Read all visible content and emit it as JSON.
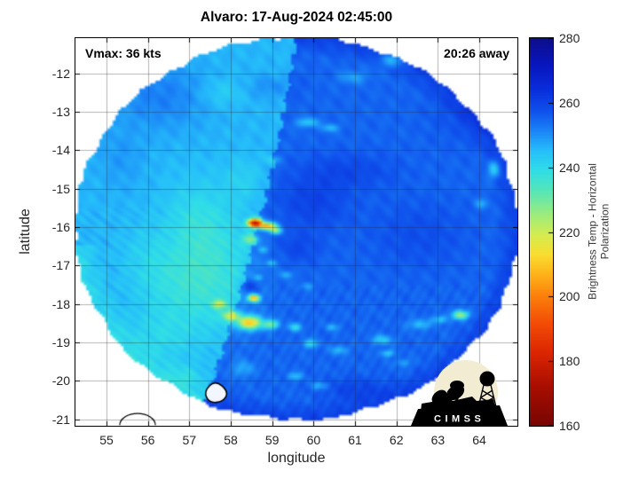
{
  "logo": {
    "text": "CIMSS",
    "bg_color": "#f2ecd2"
  },
  "chart_data": {
    "type": "heatmap",
    "title": "Alvaro: 17-Aug-2024 02:45:00",
    "annotations": {
      "vmax": "Vmax: 36 kts",
      "time_away": "20:26 away"
    },
    "x": {
      "label": "longitude",
      "ticks": [
        55,
        56,
        57,
        58,
        59,
        60,
        61,
        62,
        63,
        64
      ],
      "range": [
        54.25,
        64.92
      ]
    },
    "y": {
      "label": "latitude",
      "ticks": [
        -12,
        -13,
        -14,
        -15,
        -16,
        -17,
        -18,
        -19,
        -20,
        -21
      ],
      "range": [
        -21.17,
        -11.08
      ]
    },
    "colorbar": {
      "label": "Brightness Temp - Horizontal Polarization",
      "ticks": [
        160,
        180,
        200,
        220,
        240,
        260,
        280
      ],
      "range": [
        160,
        280
      ],
      "colormap_stops": [
        [
          160,
          [
            120,
            6,
            4
          ]
        ],
        [
          172,
          [
            168,
            14,
            0
          ]
        ],
        [
          182,
          [
            218,
            36,
            2
          ]
        ],
        [
          192,
          [
            244,
            78,
            6
          ]
        ],
        [
          200,
          [
            252,
            128,
            12
          ]
        ],
        [
          207,
          [
            254,
            180,
            26
          ]
        ],
        [
          213,
          [
            250,
            222,
            48
          ]
        ],
        [
          219,
          [
            214,
            236,
            80
          ]
        ],
        [
          226,
          [
            150,
            236,
            130
          ]
        ],
        [
          233,
          [
            84,
            230,
            188
          ]
        ],
        [
          239,
          [
            48,
            222,
            232
          ]
        ],
        [
          245,
          [
            38,
            192,
            250
          ]
        ],
        [
          251,
          [
            28,
            136,
            248
          ]
        ],
        [
          257,
          [
            16,
            84,
            238
          ]
        ],
        [
          264,
          [
            10,
            46,
            220
          ]
        ],
        [
          272,
          [
            8,
            22,
            190
          ]
        ],
        [
          280,
          [
            14,
            14,
            138
          ]
        ]
      ]
    },
    "field": {
      "footprint_ellipse": {
        "lon": 59.59,
        "lat": -16.04,
        "rx": 5.35,
        "ry": 4.99
      },
      "swath_seam": {
        "lon_at_ref": 58.66,
        "ref_lat": -16.0,
        "slope": 0.235,
        "curve": -0.01
      },
      "base_temp_left_swath": 246,
      "base_temp_right_swath": 255,
      "blobs_lon_lat_sx_sy_dT": [
        [
          58.58,
          -15.9,
          0.17,
          0.105,
          -68
        ],
        [
          58.88,
          -15.98,
          0.21,
          0.095,
          -48
        ],
        [
          59.08,
          -16.1,
          0.14,
          0.085,
          -28
        ],
        [
          58.48,
          -16.33,
          0.2,
          0.13,
          -16
        ],
        [
          58.56,
          -17.86,
          0.13,
          0.09,
          -50
        ],
        [
          58.45,
          -18.5,
          0.3,
          0.17,
          -44
        ],
        [
          58.02,
          -18.32,
          0.22,
          0.13,
          -24
        ],
        [
          58.97,
          -18.55,
          0.17,
          0.11,
          -26
        ],
        [
          59.55,
          -18.62,
          0.16,
          0.1,
          -15
        ],
        [
          57.72,
          -18.02,
          0.17,
          0.11,
          -20
        ],
        [
          63.55,
          -18.3,
          0.18,
          0.11,
          -32
        ],
        [
          59.85,
          -13.28,
          0.26,
          0.12,
          -12
        ],
        [
          60.4,
          -13.42,
          0.2,
          0.1,
          -10
        ],
        [
          59.05,
          -14.25,
          0.16,
          0.1,
          -8
        ],
        [
          61.9,
          -11.65,
          0.3,
          0.18,
          -12
        ],
        [
          60.95,
          -12.1,
          0.35,
          0.16,
          -7
        ],
        [
          64.35,
          -14.5,
          0.14,
          0.22,
          -14
        ],
        [
          64.05,
          -15.4,
          0.16,
          0.12,
          -8
        ],
        [
          59.92,
          -19.05,
          0.18,
          0.11,
          -14
        ],
        [
          60.62,
          -19.22,
          0.2,
          0.11,
          -10
        ],
        [
          60.45,
          -18.62,
          0.14,
          0.09,
          -10
        ],
        [
          61.65,
          -18.95,
          0.25,
          0.12,
          -12
        ],
        [
          62.55,
          -18.55,
          0.28,
          0.13,
          -10
        ],
        [
          63.05,
          -18.42,
          0.18,
          0.1,
          -12
        ],
        [
          61.78,
          -19.3,
          0.15,
          0.09,
          -13
        ],
        [
          62.15,
          -19.55,
          0.18,
          0.1,
          -7
        ],
        [
          60.15,
          -20.15,
          0.2,
          0.1,
          -9
        ],
        [
          59.55,
          -19.9,
          0.18,
          0.1,
          -10
        ],
        [
          58.78,
          -16.6,
          0.12,
          0.08,
          -9
        ],
        [
          58.98,
          -16.95,
          0.12,
          0.08,
          -11
        ],
        [
          59.35,
          -17.25,
          0.14,
          0.09,
          -9
        ],
        [
          59.85,
          -17.55,
          0.15,
          0.09,
          -7
        ],
        [
          58.68,
          -17.32,
          0.1,
          0.07,
          -9
        ],
        [
          59.95,
          -15.35,
          0.85,
          0.7,
          5
        ],
        [
          59.6,
          -16.55,
          0.5,
          0.38,
          4
        ],
        [
          60.85,
          -14.55,
          1.1,
          0.45,
          4
        ],
        [
          58.45,
          -17.55,
          0.2,
          0.16,
          9
        ],
        [
          62.55,
          -16.2,
          1.2,
          0.85,
          3
        ],
        [
          61.05,
          -20.25,
          0.8,
          0.3,
          5
        ],
        [
          58.95,
          -12.35,
          0.55,
          0.3,
          4
        ],
        [
          63.85,
          -13.0,
          1.0,
          0.8,
          3
        ],
        [
          57.6,
          -17.3,
          1.0,
          1.45,
          -8
        ],
        [
          57.2,
          -15.8,
          0.8,
          1.0,
          -6
        ],
        [
          56.6,
          -17.5,
          0.9,
          1.0,
          -5
        ],
        [
          56.3,
          -18.9,
          0.8,
          0.7,
          -5
        ],
        [
          55.95,
          -16.8,
          0.6,
          0.8,
          -3
        ],
        [
          56.3,
          -12.6,
          1.1,
          0.85,
          6
        ],
        [
          55.35,
          -14.2,
          0.55,
          0.8,
          3
        ],
        [
          57.8,
          -12.5,
          0.5,
          0.35,
          -4
        ],
        [
          58.3,
          -14.8,
          0.45,
          0.55,
          -4
        ],
        [
          56.9,
          -19.9,
          0.45,
          0.33,
          -5
        ],
        [
          58.3,
          -19.7,
          0.25,
          0.2,
          -8
        ]
      ]
    },
    "contours": [
      {
        "style": "white-fill-black-stroke",
        "points_lon_lat": [
          [
            57.62,
            -19.98
          ],
          [
            57.95,
            -20.28
          ],
          [
            57.82,
            -20.54
          ],
          [
            57.48,
            -20.58
          ],
          [
            57.35,
            -20.28
          ]
        ]
      },
      {
        "style": "black-open-arc",
        "center_lon_lat": [
          55.75,
          -21.15
        ],
        "rx_deg": 0.43,
        "ry_deg": 0.3
      }
    ]
  }
}
